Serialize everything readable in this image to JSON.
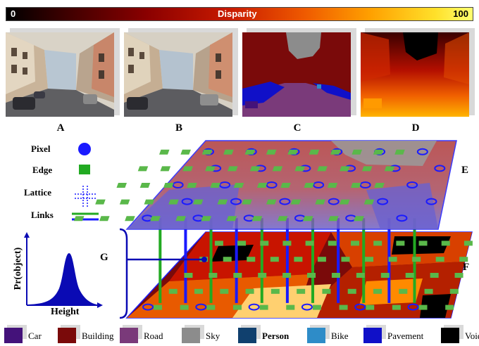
{
  "disparity_bar": {
    "min": "0",
    "label": "Disparity",
    "max": "100"
  },
  "panel_captions": [
    "A",
    "B",
    "C",
    "D"
  ],
  "element_legend": [
    {
      "label": "Pixel",
      "symbol": "circle",
      "color": "#1a1aff"
    },
    {
      "label": "Edge",
      "symbol": "square",
      "color": "#22aa22"
    },
    {
      "label": "Lattice",
      "symbol": "dotted-cross",
      "color": "#1a1aff"
    },
    {
      "label": "Links",
      "symbol": "lines",
      "colors": [
        "#22aa22",
        "#1a1aff"
      ]
    }
  ],
  "layer_labels": {
    "upper": "E",
    "lower": "F",
    "prior": "G"
  },
  "prior_plot": {
    "ylabel": "Pr(object)",
    "xlabel": "Height",
    "color": "#0a0ab4"
  },
  "class_legend": [
    {
      "label": "Car",
      "color": "#44127a"
    },
    {
      "label": "Building",
      "color": "#7a0a0a"
    },
    {
      "label": "Road",
      "color": "#7a3a7a"
    },
    {
      "label": "Sky",
      "color": "#8c8c8c"
    },
    {
      "label": "Person",
      "color": "#10406e"
    },
    {
      "label": "Bike",
      "color": "#2e8cc8"
    },
    {
      "label": "Pavement",
      "color": "#1010c8"
    },
    {
      "label": "Void",
      "color": "#000000"
    }
  ]
}
